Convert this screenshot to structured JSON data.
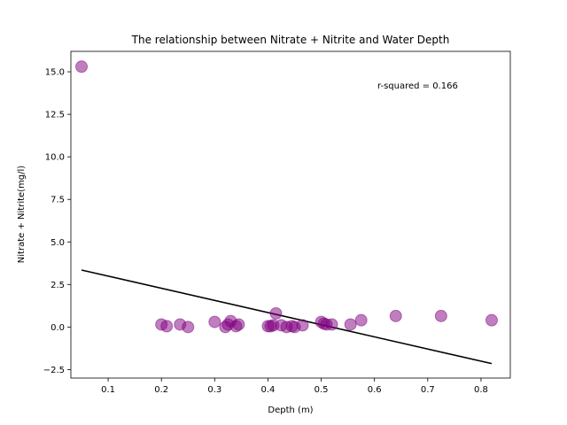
{
  "chart_data": {
    "type": "scatter",
    "title": "The relationship between Nitrate + Nitrite and Water Depth",
    "xlabel": "Depth (m)",
    "ylabel": "Nitrate + Nitrite(mg/l)",
    "xlim": [
      0.03,
      0.855
    ],
    "ylim": [
      -3.0,
      16.2
    ],
    "xticks": [
      0.1,
      0.2,
      0.3,
      0.4,
      0.5,
      0.6,
      0.7,
      0.8
    ],
    "xtick_labels": [
      "0.1",
      "0.2",
      "0.3",
      "0.4",
      "0.5",
      "0.6",
      "0.7",
      "0.8"
    ],
    "yticks": [
      -2.5,
      0.0,
      2.5,
      5.0,
      7.5,
      10.0,
      12.5,
      15.0
    ],
    "ytick_labels": [
      "−2.5",
      "0.0",
      "2.5",
      "5.0",
      "7.5",
      "10.0",
      "12.5",
      "15.0"
    ],
    "annotation": "r-squared = 0.166",
    "point_color": "#800080",
    "line_color": "#000000",
    "grid": false,
    "points": [
      {
        "x": 0.05,
        "y": 15.3
      },
      {
        "x": 0.2,
        "y": 0.15
      },
      {
        "x": 0.21,
        "y": 0.05
      },
      {
        "x": 0.235,
        "y": 0.15
      },
      {
        "x": 0.25,
        "y": 0.0
      },
      {
        "x": 0.3,
        "y": 0.3
      },
      {
        "x": 0.32,
        "y": 0.0
      },
      {
        "x": 0.325,
        "y": 0.15
      },
      {
        "x": 0.33,
        "y": 0.35
      },
      {
        "x": 0.34,
        "y": 0.05
      },
      {
        "x": 0.345,
        "y": 0.15
      },
      {
        "x": 0.4,
        "y": 0.05
      },
      {
        "x": 0.405,
        "y": 0.05
      },
      {
        "x": 0.41,
        "y": 0.1
      },
      {
        "x": 0.415,
        "y": 0.8
      },
      {
        "x": 0.425,
        "y": 0.1
      },
      {
        "x": 0.435,
        "y": 0.0
      },
      {
        "x": 0.445,
        "y": 0.05
      },
      {
        "x": 0.45,
        "y": 0.0
      },
      {
        "x": 0.465,
        "y": 0.1
      },
      {
        "x": 0.5,
        "y": 0.3
      },
      {
        "x": 0.505,
        "y": 0.2
      },
      {
        "x": 0.51,
        "y": 0.15
      },
      {
        "x": 0.52,
        "y": 0.15
      },
      {
        "x": 0.555,
        "y": 0.15
      },
      {
        "x": 0.575,
        "y": 0.4
      },
      {
        "x": 0.64,
        "y": 0.65
      },
      {
        "x": 0.725,
        "y": 0.65
      },
      {
        "x": 0.82,
        "y": 0.4
      }
    ],
    "fit_line": {
      "x": [
        0.05,
        0.82
      ],
      "y": [
        3.35,
        -2.15
      ]
    }
  }
}
